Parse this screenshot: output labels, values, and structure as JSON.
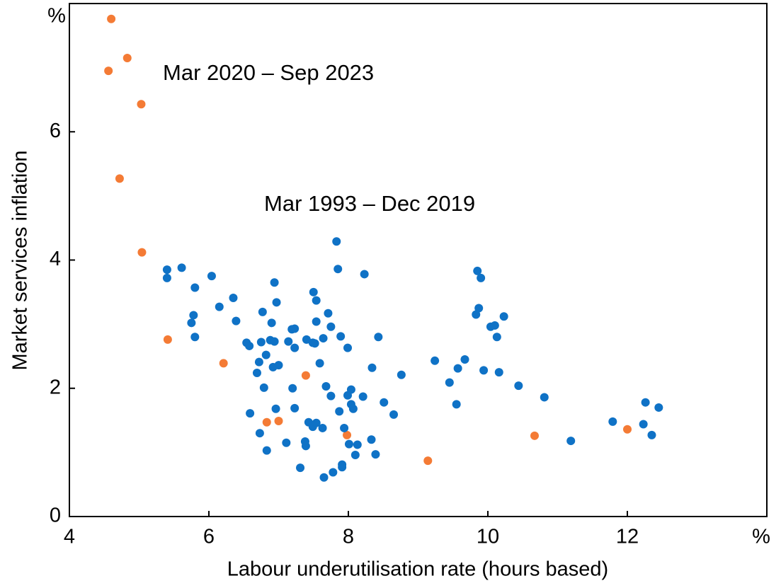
{
  "chart_data": {
    "type": "scatter",
    "x_label": "Labour underutilisation rate (hours based)",
    "y_label": "Market services inflation",
    "x_unit": "%",
    "y_unit": "%",
    "xlim": [
      4,
      14
    ],
    "xticks": [
      4,
      6,
      8,
      10,
      12
    ],
    "ylim": [
      0,
      8
    ],
    "yticks": [
      0,
      2,
      4,
      6
    ],
    "series": [
      {
        "name": "Mar 2020 – Sep 2023",
        "color": "#f47b35",
        "x": [
          4.6,
          4.83,
          4.56,
          5.03,
          4.72,
          5.04,
          5.41,
          6.21,
          7.39,
          6.83,
          7.0,
          7.98,
          9.14,
          10.67,
          12.0
        ],
        "values": [
          7.76,
          7.15,
          6.95,
          6.43,
          5.27,
          4.12,
          2.76,
          2.39,
          2.2,
          1.47,
          1.49,
          1.27,
          0.87,
          1.26,
          1.36
        ]
      },
      {
        "name": "Mar 1993 – Dec 2019",
        "color": "#0f72c6",
        "x": [
          5.4,
          5.4,
          5.61,
          6.04,
          5.8,
          5.78,
          5.75,
          5.8,
          6.15,
          6.35,
          6.39,
          6.54,
          6.58,
          6.59,
          6.73,
          6.69,
          6.72,
          6.75,
          6.77,
          6.79,
          6.82,
          6.83,
          6.88,
          6.9,
          6.92,
          6.94,
          6.94,
          6.97,
          6.96,
          7.0,
          7.11,
          7.14,
          7.19,
          7.23,
          7.23,
          7.2,
          7.23,
          7.31,
          7.38,
          7.39,
          7.4,
          7.43,
          7.49,
          7.49,
          7.5,
          7.54,
          7.54,
          7.52,
          7.54,
          7.59,
          7.63,
          7.64,
          7.68,
          7.65,
          7.71,
          7.75,
          7.75,
          7.78,
          7.83,
          7.85,
          7.87,
          7.89,
          7.91,
          7.91,
          7.94,
          7.99,
          7.99,
          8.01,
          8.04,
          8.04,
          8.07,
          8.1,
          8.13,
          8.23,
          8.21,
          8.33,
          8.34,
          8.39,
          8.43,
          8.51,
          8.65,
          8.76,
          9.24,
          9.45,
          9.55,
          9.57,
          9.67,
          9.83,
          9.85,
          9.87,
          9.9,
          9.94,
          10.04,
          10.1,
          10.13,
          10.16,
          10.23,
          10.44,
          10.81,
          11.19,
          11.79,
          12.23,
          12.26,
          12.35,
          12.45
        ],
        "values": [
          3.85,
          3.72,
          3.88,
          3.75,
          3.57,
          3.14,
          3.02,
          2.8,
          3.27,
          3.41,
          3.05,
          2.71,
          2.66,
          1.61,
          1.3,
          2.24,
          2.41,
          2.72,
          3.19,
          2.01,
          2.52,
          1.03,
          2.75,
          3.02,
          2.33,
          2.73,
          3.65,
          3.34,
          1.68,
          2.36,
          1.15,
          2.73,
          2.92,
          2.93,
          2.63,
          2.0,
          1.69,
          0.76,
          1.17,
          1.1,
          2.76,
          1.47,
          1.4,
          2.71,
          3.5,
          3.37,
          3.04,
          2.7,
          1.46,
          2.39,
          1.38,
          2.78,
          2.03,
          0.61,
          3.17,
          2.96,
          1.88,
          0.69,
          4.29,
          3.86,
          1.64,
          2.81,
          0.77,
          0.81,
          1.38,
          2.63,
          1.89,
          1.13,
          1.98,
          1.75,
          1.68,
          0.96,
          1.12,
          3.78,
          1.87,
          1.2,
          2.32,
          0.97,
          2.8,
          1.78,
          1.59,
          2.21,
          2.43,
          2.09,
          1.75,
          2.31,
          2.45,
          3.15,
          3.83,
          3.25,
          3.72,
          2.28,
          2.96,
          2.98,
          2.8,
          2.25,
          3.12,
          2.04,
          1.86,
          1.18,
          1.48,
          1.44,
          1.78,
          1.27,
          1.7
        ]
      }
    ]
  }
}
